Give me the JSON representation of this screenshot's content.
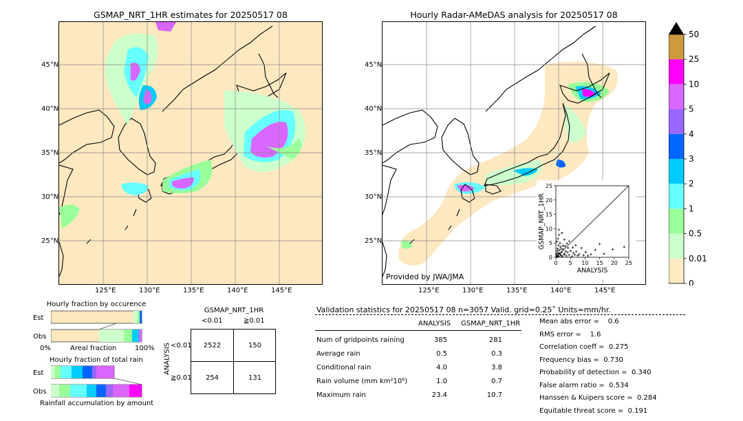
{
  "left_map": {
    "title": "GSMAP_NRT_1HR estimates for 20250517 08",
    "lat_labels": [
      "45°N",
      "40°N",
      "35°N",
      "30°N",
      "25°N"
    ],
    "lon_labels": [
      "125°E",
      "130°E",
      "135°E",
      "140°E",
      "145°E"
    ]
  },
  "right_map": {
    "title": "Hourly Radar-AMeDAS analysis for 20250517 08",
    "lat_labels": [
      "45°N",
      "40°N",
      "35°N",
      "30°N",
      "25°N"
    ],
    "lon_labels": [
      "125°E",
      "130°E",
      "135°E",
      "140°E",
      "145°E"
    ],
    "credit": "Provided by JWA/JMA"
  },
  "colorbar": {
    "labels": [
      "50",
      "25",
      "10",
      "5",
      "4",
      "3",
      "2",
      "1",
      "0.5",
      "0.01",
      "0"
    ],
    "colors": [
      "#cd9a3f",
      "#ff00ff",
      "#d966ff",
      "#9966ff",
      "#0066ff",
      "#00ccff",
      "#66ffff",
      "#99ff99",
      "#ccffcc",
      "#ffebc2"
    ]
  },
  "fraction_occurrence": {
    "title": "Hourly fraction by occurence",
    "rows": [
      "Est",
      "Obs"
    ],
    "axis_left": "0%",
    "axis_mid": "Areal fraction",
    "axis_right": "100%"
  },
  "fraction_total": {
    "title": "Hourly fraction of total rain",
    "rows": [
      "Est",
      "Obs"
    ],
    "footer": "Rainfall accumulation by amount"
  },
  "contingency": {
    "title": "GSMAP_NRT_1HR",
    "col_labels": [
      "<0.01",
      "≧0.01"
    ],
    "row_title": "ANALYSIS",
    "row_labels": [
      "<0.01",
      "≧0.01"
    ],
    "cells": [
      [
        "2522",
        "150"
      ],
      [
        "254",
        "131"
      ]
    ]
  },
  "validation": {
    "header": "Validation statistics for 20250517 08  n=3057 Valid. grid=0.25˚ Units=mm/hr.",
    "col_analysis": "ANALYSIS",
    "col_gsmap": "GSMAP_NRT_1HR",
    "rows": [
      {
        "label": "Num of gridpoints raining",
        "analysis": "385",
        "gsmap": "281"
      },
      {
        "label": "Average rain",
        "analysis": "0.5",
        "gsmap": "0.3"
      },
      {
        "label": "Conditional rain",
        "analysis": "4.0",
        "gsmap": "3.8"
      },
      {
        "label": "Rain volume (mm km²10⁶)",
        "analysis": "1.0",
        "gsmap": "0.7"
      },
      {
        "label": "Maximum rain",
        "analysis": "23.4",
        "gsmap": "10.7"
      }
    ],
    "scores": [
      "Mean abs error =    0.6",
      "RMS error =    1.6",
      "Correlation coeff =  0.275",
      "Frequency bias =  0.730",
      "Probability of detection =  0.340",
      "False alarm ratio =  0.534",
      "Hanssen & Kuipers score =  0.284",
      "Equitable threat score =  0.191"
    ]
  },
  "chart_data": {
    "type": "scatter",
    "xlabel": "ANALYSIS",
    "ylabel": "GSMAP_NRT_1HR",
    "xlim": [
      0,
      25
    ],
    "ylim": [
      0,
      25
    ],
    "x_ticks": [
      "0",
      "5",
      "10",
      "15",
      "20",
      "25"
    ],
    "y_ticks": [
      "0",
      "5",
      "10",
      "15",
      "20",
      "25"
    ],
    "points": [
      [
        0.3,
        0.2
      ],
      [
        0.5,
        0.8
      ],
      [
        0.8,
        1.5
      ],
      [
        1.0,
        0.4
      ],
      [
        1.2,
        2.5
      ],
      [
        1.5,
        1.0
      ],
      [
        0.6,
        3.0
      ],
      [
        0.9,
        4.2
      ],
      [
        1.8,
        0.6
      ],
      [
        2.0,
        1.8
      ],
      [
        2.2,
        0.3
      ],
      [
        2.5,
        2.8
      ],
      [
        3.0,
        1.2
      ],
      [
        0.4,
        5.5
      ],
      [
        0.7,
        6.5
      ],
      [
        1.1,
        7.8
      ],
      [
        1.6,
        3.6
      ],
      [
        2.8,
        0.9
      ],
      [
        3.3,
        2.1
      ],
      [
        3.6,
        0.5
      ],
      [
        4.0,
        1.7
      ],
      [
        4.2,
        3.3
      ],
      [
        4.5,
        0.8
      ],
      [
        5.0,
        2.2
      ],
      [
        5.5,
        0.4
      ],
      [
        6.0,
        1.5
      ],
      [
        6.5,
        0.9
      ],
      [
        7.0,
        2.0
      ],
      [
        7.5,
        0.6
      ],
      [
        8.0,
        1.1
      ],
      [
        8.8,
        3.2
      ],
      [
        9.5,
        0.7
      ],
      [
        10.2,
        1.8
      ],
      [
        11.0,
        0.5
      ],
      [
        12.0,
        1.0
      ],
      [
        13.5,
        2.6
      ],
      [
        15.0,
        4.6
      ],
      [
        16.5,
        1.2
      ],
      [
        19.5,
        2.8
      ],
      [
        23.4,
        3.6
      ],
      [
        0.2,
        1.2
      ],
      [
        0.5,
        2.2
      ],
      [
        1.4,
        5.0
      ],
      [
        2.4,
        4.0
      ],
      [
        3.8,
        4.8
      ],
      [
        5.8,
        3.4
      ],
      [
        6.8,
        4.2
      ],
      [
        2.9,
        6.2
      ],
      [
        0.3,
        0.5
      ],
      [
        0.6,
        0.3
      ],
      [
        1.3,
        1.3
      ],
      [
        1.9,
        2.9
      ],
      [
        3.1,
        3.9
      ],
      [
        4.6,
        5.6
      ],
      [
        2.1,
        8.5
      ],
      [
        1.0,
        9.6
      ]
    ]
  }
}
